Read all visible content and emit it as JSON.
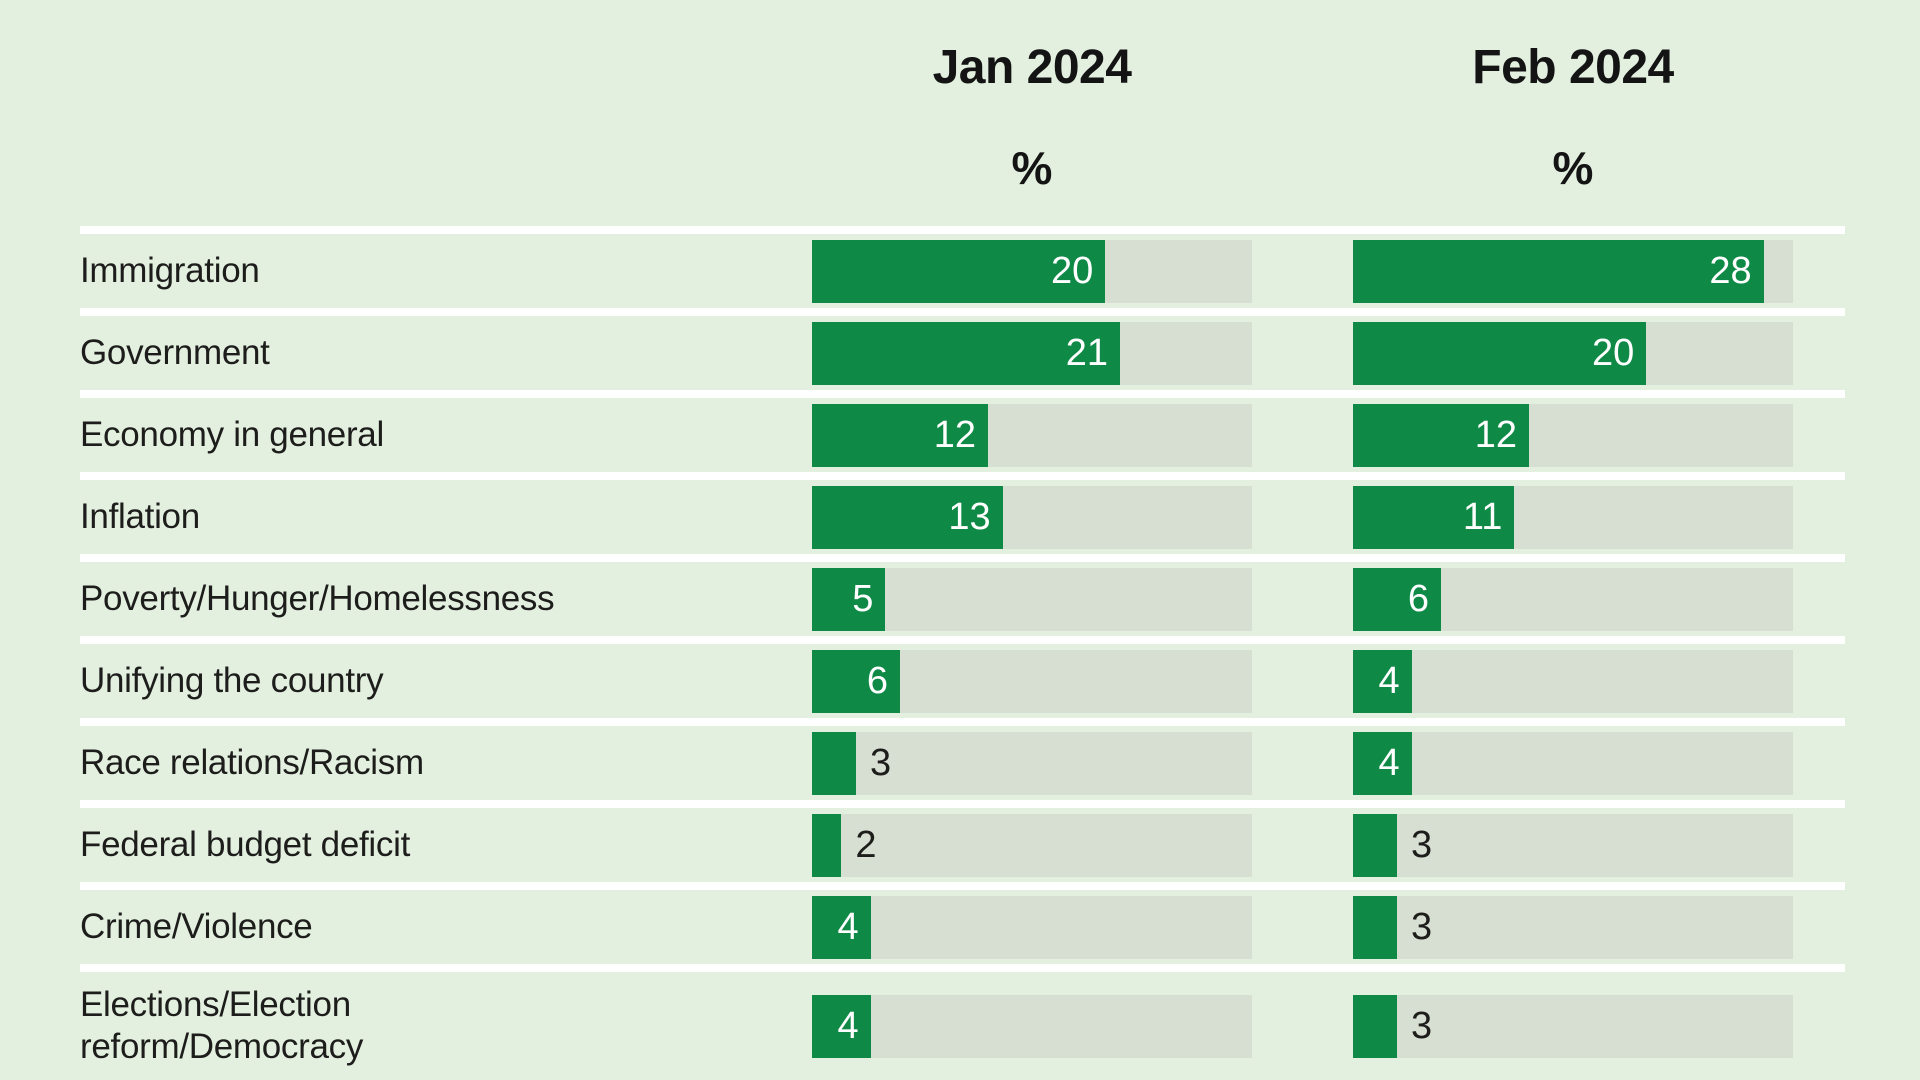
{
  "chart_data": {
    "type": "bar",
    "orientation": "horizontal",
    "title": "",
    "categories": [
      "Immigration",
      "Government",
      "Economy in general",
      "Inflation",
      "Poverty/Hunger/Homelessness",
      "Unifying the country",
      "Race relations/Racism",
      "Federal budget deficit",
      "Crime/Violence",
      "Elections/Election\nreform/Democracy"
    ],
    "series": [
      {
        "name": "Jan 2024",
        "unit": "%",
        "values": [
          20,
          21,
          12,
          13,
          5,
          6,
          3,
          2,
          4,
          4
        ]
      },
      {
        "name": "Feb 2024",
        "unit": "%",
        "values": [
          28,
          20,
          12,
          11,
          6,
          4,
          4,
          3,
          3,
          3
        ]
      }
    ],
    "xlim": [
      0,
      30
    ],
    "grid": "off",
    "legend_position": "column-headers-top",
    "value_label_rule": "values 4 and above shown white inside bar right edge; 3 and below shown dark outside bar",
    "inside_label_min_value": 4,
    "colors": {
      "background": "#e3f0e0",
      "bar": "#0e8a46",
      "track": "#d7ded2",
      "separator": "#ffffff",
      "value_inside": "#ffffff",
      "value_outside": "#1d1d1b",
      "category_text": "#1d1d1b",
      "header_text": "#141414"
    }
  }
}
